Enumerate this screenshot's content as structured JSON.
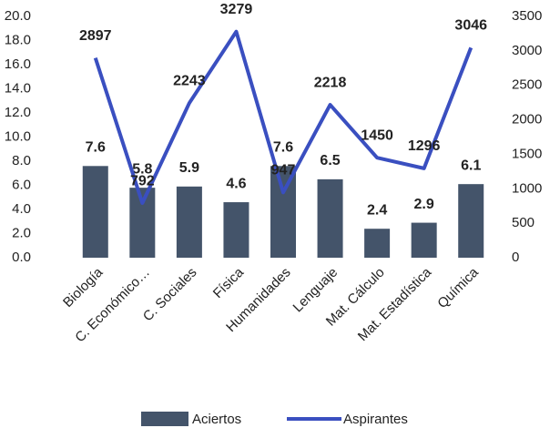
{
  "chart_data": {
    "type": "bar",
    "categories": [
      "Biología",
      "C. Económico…",
      "C. Sociales",
      "Física",
      "Humanidades",
      "Lenguaje",
      "Mat. Cálculo",
      "Mat. Estadística",
      "Química"
    ],
    "series": [
      {
        "name": "Aciertos",
        "type": "bar",
        "color": "#44546a",
        "values": [
          7.6,
          5.8,
          5.9,
          4.6,
          7.6,
          6.5,
          2.4,
          2.9,
          6.1
        ]
      },
      {
        "name": "Aspirantes",
        "type": "line",
        "axis": "y2",
        "color": "#3a4fc0",
        "values": [
          2897,
          792,
          2243,
          3279,
          947,
          2218,
          1450,
          1296,
          3046
        ]
      }
    ],
    "ylim": [
      0,
      20
    ],
    "yticks": [
      {
        "value": 0,
        "label": "0.0"
      },
      {
        "value": 2,
        "label": "2.0"
      },
      {
        "value": 4,
        "label": "4.0"
      },
      {
        "value": 6,
        "label": "6.0"
      },
      {
        "value": 8,
        "label": "8.0"
      },
      {
        "value": 10,
        "label": "10.0"
      },
      {
        "value": 12,
        "label": "12.0"
      },
      {
        "value": 14,
        "label": "14.0"
      },
      {
        "value": 16,
        "label": "16.0"
      },
      {
        "value": 18,
        "label": "18.0"
      },
      {
        "value": 20,
        "label": "20.0"
      }
    ],
    "y2lim": [
      0,
      3500
    ],
    "y2ticks": [
      0,
      500,
      1000,
      1500,
      2000,
      2500,
      3000,
      3500
    ],
    "legend": "bottom"
  }
}
